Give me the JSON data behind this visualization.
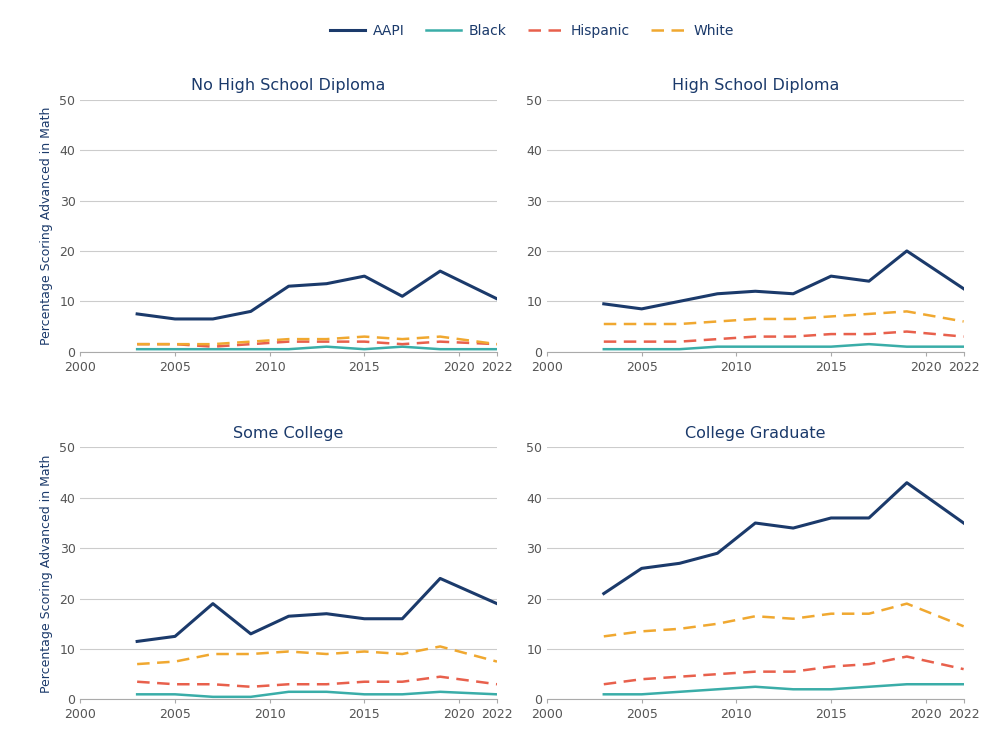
{
  "years": [
    2003,
    2005,
    2007,
    2009,
    2011,
    2013,
    2015,
    2017,
    2019,
    2022
  ],
  "panels": [
    {
      "title": "No High School Diploma",
      "AAPI": [
        7.5,
        6.5,
        6.5,
        8.0,
        13.0,
        13.5,
        15.0,
        11.0,
        16.0,
        10.5
      ],
      "Black": [
        0.5,
        0.5,
        0.5,
        0.5,
        0.5,
        1.0,
        0.5,
        1.0,
        0.5,
        0.5
      ],
      "Hispanic": [
        1.5,
        1.5,
        1.0,
        1.5,
        2.0,
        2.0,
        2.0,
        1.5,
        2.0,
        1.5
      ],
      "White": [
        1.5,
        1.5,
        1.5,
        2.0,
        2.5,
        2.5,
        3.0,
        2.5,
        3.0,
        1.5
      ]
    },
    {
      "title": "High School Diploma",
      "AAPI": [
        9.5,
        8.5,
        10.0,
        11.5,
        12.0,
        11.5,
        15.0,
        14.0,
        20.0,
        12.5
      ],
      "Black": [
        0.5,
        0.5,
        0.5,
        1.0,
        1.0,
        1.0,
        1.0,
        1.5,
        1.0,
        1.0
      ],
      "Hispanic": [
        2.0,
        2.0,
        2.0,
        2.5,
        3.0,
        3.0,
        3.5,
        3.5,
        4.0,
        3.0
      ],
      "White": [
        5.5,
        5.5,
        5.5,
        6.0,
        6.5,
        6.5,
        7.0,
        7.5,
        8.0,
        6.0
      ]
    },
    {
      "title": "Some College",
      "AAPI": [
        11.5,
        12.5,
        19.0,
        13.0,
        16.5,
        17.0,
        16.0,
        16.0,
        24.0,
        19.0
      ],
      "Black": [
        1.0,
        1.0,
        0.5,
        0.5,
        1.5,
        1.5,
        1.0,
        1.0,
        1.5,
        1.0
      ],
      "Hispanic": [
        3.5,
        3.0,
        3.0,
        2.5,
        3.0,
        3.0,
        3.5,
        3.5,
        4.5,
        3.0
      ],
      "White": [
        7.0,
        7.5,
        9.0,
        9.0,
        9.5,
        9.0,
        9.5,
        9.0,
        10.5,
        7.5
      ]
    },
    {
      "title": "College Graduate",
      "AAPI": [
        21.0,
        26.0,
        27.0,
        29.0,
        35.0,
        34.0,
        36.0,
        36.0,
        43.0,
        35.0
      ],
      "Black": [
        1.0,
        1.0,
        1.5,
        2.0,
        2.5,
        2.0,
        2.0,
        2.5,
        3.0,
        3.0
      ],
      "Hispanic": [
        3.0,
        4.0,
        4.5,
        5.0,
        5.5,
        5.5,
        6.5,
        7.0,
        8.5,
        6.0
      ],
      "White": [
        12.5,
        13.5,
        14.0,
        15.0,
        16.5,
        16.0,
        17.0,
        17.0,
        19.0,
        14.5
      ]
    }
  ],
  "colors": {
    "AAPI": {
      "color": "#1b3a6b",
      "linestyle": "-",
      "linewidth": 2.2,
      "dashes": null
    },
    "Black": {
      "color": "#3aada8",
      "linestyle": "-",
      "linewidth": 1.8,
      "dashes": null
    },
    "Hispanic": {
      "color": "#e8604c",
      "linestyle": "--",
      "linewidth": 1.8,
      "dashes": [
        5,
        3
      ]
    },
    "White": {
      "color": "#f0a830",
      "linestyle": "--",
      "linewidth": 1.8,
      "dashes": [
        5,
        3
      ]
    }
  },
  "ylim": [
    0,
    50
  ],
  "yticks": [
    0,
    10,
    20,
    30,
    40,
    50
  ],
  "xlim": [
    2000,
    2022
  ],
  "xticks": [
    2000,
    2005,
    2010,
    2015,
    2020,
    2022
  ],
  "ylabel": "Percentage Scoring Advanced in Math",
  "background_color": "#ffffff",
  "grid_color": "#cccccc",
  "title_color": "#1b3a6b",
  "tick_color": "#555555",
  "spine_color": "#aaaaaa",
  "legend_order": [
    "AAPI",
    "Black",
    "Hispanic",
    "White"
  ]
}
